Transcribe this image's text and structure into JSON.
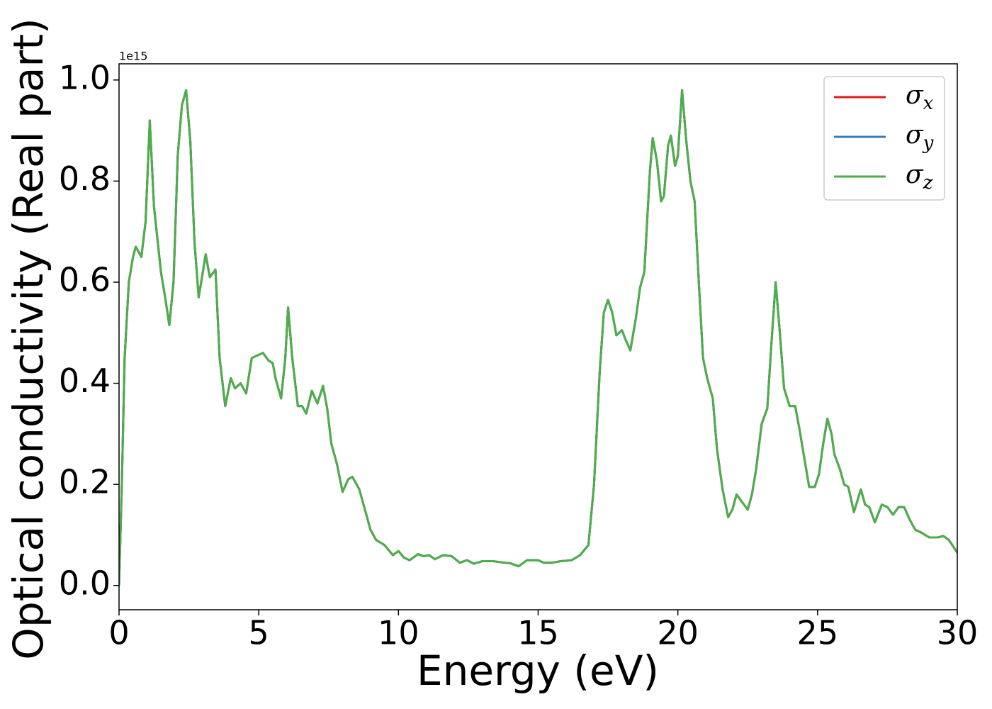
{
  "chart_data": {
    "type": "line",
    "xlabel": "Energy (eV)",
    "ylabel": "Optical conductivity (Real part)",
    "y_offset_label": "1e15",
    "xlim": [
      0,
      30
    ],
    "ylim": [
      -0.048,
      1.032
    ],
    "xticks": [
      0,
      5,
      10,
      15,
      20,
      25,
      30
    ],
    "yticks": [
      {
        "value": 0,
        "label": "0.0"
      },
      {
        "value": 0.2,
        "label": "0.2"
      },
      {
        "value": 0.4,
        "label": "0.4"
      },
      {
        "value": 0.6,
        "label": "0.6"
      },
      {
        "value": 0.8,
        "label": "0.8"
      },
      {
        "value": 1.0,
        "label": "1.0"
      }
    ],
    "legend": "upper right",
    "x": [
      0,
      0.1,
      0.2,
      0.35,
      0.5,
      0.6,
      0.8,
      0.95,
      1.1,
      1.25,
      1.5,
      1.65,
      1.8,
      1.95,
      2.1,
      2.25,
      2.4,
      2.55,
      2.7,
      2.85,
      3.0,
      3.1,
      3.25,
      3.45,
      3.6,
      3.8,
      4.0,
      4.15,
      4.35,
      4.55,
      4.75,
      4.95,
      5.15,
      5.35,
      5.5,
      5.6,
      5.8,
      5.95,
      6.05,
      6.2,
      6.4,
      6.55,
      6.7,
      6.9,
      7.1,
      7.3,
      7.45,
      7.6,
      7.8,
      8.0,
      8.2,
      8.35,
      8.6,
      8.8,
      9.0,
      9.2,
      9.5,
      9.8,
      10.0,
      10.2,
      10.4,
      10.7,
      10.9,
      11.1,
      11.3,
      11.6,
      11.9,
      12.2,
      12.45,
      12.7,
      13.0,
      13.4,
      13.8,
      14.0,
      14.3,
      14.6,
      15.0,
      15.2,
      15.5,
      15.8,
      16.2,
      16.5,
      16.8,
      17.0,
      17.2,
      17.35,
      17.5,
      17.65,
      17.8,
      18.0,
      18.1,
      18.3,
      18.5,
      18.65,
      18.8,
      19.0,
      19.1,
      19.25,
      19.4,
      19.5,
      19.65,
      19.75,
      19.9,
      20.0,
      20.15,
      20.3,
      20.45,
      20.6,
      20.75,
      20.9,
      21.05,
      21.25,
      21.4,
      21.6,
      21.8,
      21.95,
      22.1,
      22.3,
      22.5,
      22.65,
      22.8,
      23.0,
      23.2,
      23.35,
      23.5,
      23.65,
      23.8,
      24.0,
      24.2,
      24.35,
      24.5,
      24.7,
      24.9,
      25.05,
      25.2,
      25.35,
      25.5,
      25.6,
      25.8,
      25.95,
      26.1,
      26.3,
      26.55,
      26.7,
      26.85,
      27.05,
      27.3,
      27.5,
      27.7,
      27.9,
      28.1,
      28.3,
      28.5,
      28.7,
      29.0,
      29.3,
      29.5,
      29.7,
      30.0
    ],
    "series": [
      {
        "name": "σx",
        "color": "#e41a1c",
        "values": [
          0,
          0.2,
          0.45,
          0.6,
          0.65,
          0.67,
          0.65,
          0.72,
          0.92,
          0.75,
          0.62,
          0.57,
          0.515,
          0.6,
          0.85,
          0.95,
          0.98,
          0.88,
          0.68,
          0.57,
          0.62,
          0.655,
          0.61,
          0.625,
          0.45,
          0.355,
          0.41,
          0.39,
          0.4,
          0.38,
          0.45,
          0.455,
          0.46,
          0.445,
          0.44,
          0.41,
          0.37,
          0.45,
          0.55,
          0.45,
          0.355,
          0.355,
          0.34,
          0.385,
          0.36,
          0.395,
          0.35,
          0.28,
          0.24,
          0.185,
          0.21,
          0.215,
          0.19,
          0.15,
          0.11,
          0.09,
          0.08,
          0.06,
          0.068,
          0.055,
          0.05,
          0.062,
          0.058,
          0.06,
          0.052,
          0.06,
          0.058,
          0.045,
          0.05,
          0.043,
          0.048,
          0.048,
          0.045,
          0.044,
          0.038,
          0.05,
          0.05,
          0.045,
          0.045,
          0.048,
          0.05,
          0.06,
          0.08,
          0.2,
          0.42,
          0.54,
          0.565,
          0.54,
          0.495,
          0.505,
          0.49,
          0.465,
          0.53,
          0.59,
          0.62,
          0.82,
          0.885,
          0.84,
          0.76,
          0.77,
          0.87,
          0.89,
          0.83,
          0.85,
          0.98,
          0.88,
          0.8,
          0.76,
          0.6,
          0.45,
          0.41,
          0.37,
          0.27,
          0.19,
          0.135,
          0.15,
          0.18,
          0.165,
          0.15,
          0.18,
          0.23,
          0.32,
          0.35,
          0.48,
          0.6,
          0.5,
          0.39,
          0.355,
          0.355,
          0.31,
          0.26,
          0.195,
          0.195,
          0.22,
          0.28,
          0.33,
          0.3,
          0.26,
          0.23,
          0.2,
          0.195,
          0.145,
          0.19,
          0.16,
          0.155,
          0.125,
          0.16,
          0.155,
          0.14,
          0.155,
          0.155,
          0.13,
          0.11,
          0.105,
          0.095,
          0.095,
          0.098,
          0.09,
          0.065
        ]
      },
      {
        "name": "σy",
        "color": "#377eb8",
        "values": [
          0,
          0.2,
          0.45,
          0.6,
          0.65,
          0.67,
          0.65,
          0.72,
          0.92,
          0.75,
          0.62,
          0.57,
          0.515,
          0.6,
          0.85,
          0.95,
          0.98,
          0.88,
          0.68,
          0.57,
          0.62,
          0.655,
          0.61,
          0.625,
          0.45,
          0.355,
          0.41,
          0.39,
          0.4,
          0.38,
          0.45,
          0.455,
          0.46,
          0.445,
          0.44,
          0.41,
          0.37,
          0.45,
          0.55,
          0.45,
          0.355,
          0.355,
          0.34,
          0.385,
          0.36,
          0.395,
          0.35,
          0.28,
          0.24,
          0.185,
          0.21,
          0.215,
          0.19,
          0.15,
          0.11,
          0.09,
          0.08,
          0.06,
          0.068,
          0.055,
          0.05,
          0.062,
          0.058,
          0.06,
          0.052,
          0.06,
          0.058,
          0.045,
          0.05,
          0.043,
          0.048,
          0.048,
          0.045,
          0.044,
          0.038,
          0.05,
          0.05,
          0.045,
          0.045,
          0.048,
          0.05,
          0.06,
          0.08,
          0.2,
          0.42,
          0.54,
          0.565,
          0.54,
          0.495,
          0.505,
          0.49,
          0.465,
          0.53,
          0.59,
          0.62,
          0.82,
          0.885,
          0.84,
          0.76,
          0.77,
          0.87,
          0.89,
          0.83,
          0.85,
          0.98,
          0.88,
          0.8,
          0.76,
          0.6,
          0.45,
          0.41,
          0.37,
          0.27,
          0.19,
          0.135,
          0.15,
          0.18,
          0.165,
          0.15,
          0.18,
          0.23,
          0.32,
          0.35,
          0.48,
          0.6,
          0.5,
          0.39,
          0.355,
          0.355,
          0.31,
          0.26,
          0.195,
          0.195,
          0.22,
          0.28,
          0.33,
          0.3,
          0.26,
          0.23,
          0.2,
          0.195,
          0.145,
          0.19,
          0.16,
          0.155,
          0.125,
          0.16,
          0.155,
          0.14,
          0.155,
          0.155,
          0.13,
          0.11,
          0.105,
          0.095,
          0.095,
          0.098,
          0.09,
          0.065
        ]
      },
      {
        "name": "σz",
        "color": "#4daf4a",
        "values": [
          0,
          0.2,
          0.45,
          0.6,
          0.65,
          0.67,
          0.65,
          0.72,
          0.92,
          0.75,
          0.62,
          0.57,
          0.515,
          0.6,
          0.85,
          0.95,
          0.98,
          0.88,
          0.68,
          0.57,
          0.62,
          0.655,
          0.61,
          0.625,
          0.45,
          0.355,
          0.41,
          0.39,
          0.4,
          0.38,
          0.45,
          0.455,
          0.46,
          0.445,
          0.44,
          0.41,
          0.37,
          0.45,
          0.55,
          0.45,
          0.355,
          0.355,
          0.34,
          0.385,
          0.36,
          0.395,
          0.35,
          0.28,
          0.24,
          0.185,
          0.21,
          0.215,
          0.19,
          0.15,
          0.11,
          0.09,
          0.08,
          0.06,
          0.068,
          0.055,
          0.05,
          0.062,
          0.058,
          0.06,
          0.052,
          0.06,
          0.058,
          0.045,
          0.05,
          0.043,
          0.048,
          0.048,
          0.045,
          0.044,
          0.038,
          0.05,
          0.05,
          0.045,
          0.045,
          0.048,
          0.05,
          0.06,
          0.08,
          0.2,
          0.42,
          0.54,
          0.565,
          0.54,
          0.495,
          0.505,
          0.49,
          0.465,
          0.53,
          0.59,
          0.62,
          0.82,
          0.885,
          0.84,
          0.76,
          0.77,
          0.87,
          0.89,
          0.83,
          0.85,
          0.98,
          0.88,
          0.8,
          0.76,
          0.6,
          0.45,
          0.41,
          0.37,
          0.27,
          0.19,
          0.135,
          0.15,
          0.18,
          0.165,
          0.15,
          0.18,
          0.23,
          0.32,
          0.35,
          0.48,
          0.6,
          0.5,
          0.39,
          0.355,
          0.355,
          0.31,
          0.26,
          0.195,
          0.195,
          0.22,
          0.28,
          0.33,
          0.3,
          0.26,
          0.23,
          0.2,
          0.195,
          0.145,
          0.19,
          0.16,
          0.155,
          0.125,
          0.16,
          0.155,
          0.14,
          0.155,
          0.155,
          0.13,
          0.11,
          0.105,
          0.095,
          0.095,
          0.098,
          0.09,
          0.065
        ]
      }
    ]
  }
}
